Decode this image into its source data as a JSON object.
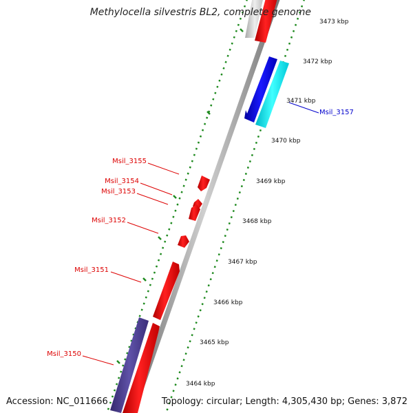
{
  "title": "Methylocella silvestris BL2, complete genome",
  "footer": {
    "accession": "Accession: NC_011666",
    "topology": "Topology: circular; Length: 4,305,430 bp; Genes: 3,872"
  },
  "kbp_ticks": [
    "3473 kbp",
    "3472 kbp",
    "3471 kbp",
    "3470 kbp",
    "3469 kbp",
    "3468 kbp",
    "3467 kbp",
    "3466 kbp",
    "3465 kbp",
    "3464 kbp"
  ],
  "genes": [
    {
      "id": "Msil_3155",
      "color": "#dd0000"
    },
    {
      "id": "Msil_3154",
      "color": "#dd0000"
    },
    {
      "id": "Msil_3153",
      "color": "#dd0000"
    },
    {
      "id": "Msil_3152",
      "color": "#dd0000"
    },
    {
      "id": "Msil_3151",
      "color": "#dd0000"
    },
    {
      "id": "Msil_3150",
      "color": "#dd0000"
    },
    {
      "id": "Msil_3157",
      "color": "#0000cc"
    }
  ],
  "colors": {
    "forward_gene": "#ff0000",
    "reverse_gene": "#0000ff",
    "cyan_gene": "#00e5ee",
    "purple_gene": "#4b3f8f",
    "grey_gene": "#c8c8c8",
    "backbone": "#8a8a8a",
    "tick_dots": "#1f8a1f"
  }
}
